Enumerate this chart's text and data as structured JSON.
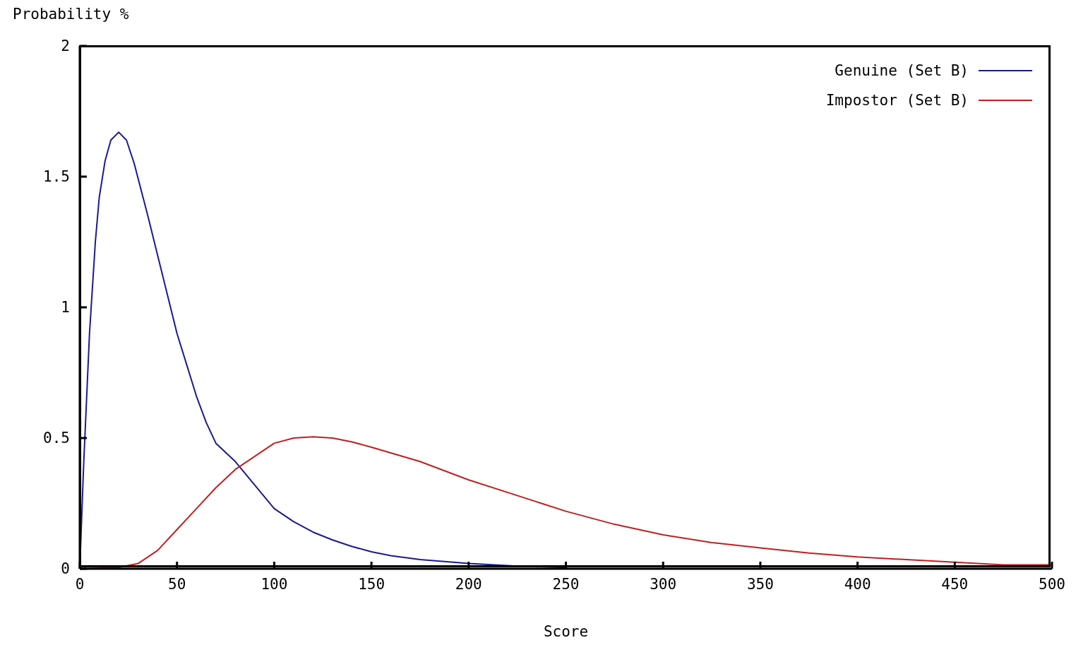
{
  "chart_data": {
    "type": "line",
    "ylabel": "Probability %",
    "xlabel": "Score",
    "xlim": [
      0,
      500
    ],
    "xticks": [
      0,
      50,
      100,
      150,
      200,
      250,
      300,
      350,
      400,
      450,
      500
    ],
    "ylim": [
      0,
      2
    ],
    "yticks": [
      0,
      0.5,
      1,
      1.5,
      2
    ],
    "grid": false,
    "legend": "top right",
    "marker": "none",
    "line_style": "solid",
    "series": [
      {
        "name": "Genuine (Set B)",
        "color": "#1a1a8c",
        "x": [
          0,
          2,
          5,
          8,
          10,
          13,
          16,
          20,
          24,
          28,
          35,
          40,
          45,
          50,
          55,
          60,
          65,
          70,
          80,
          90,
          100,
          110,
          120,
          130,
          140,
          150,
          160,
          175,
          200,
          225,
          250
        ],
        "values": [
          0,
          0.4,
          0.9,
          1.25,
          1.42,
          1.56,
          1.64,
          1.67,
          1.64,
          1.55,
          1.35,
          1.2,
          1.05,
          0.9,
          0.78,
          0.66,
          0.56,
          0.48,
          0.41,
          0.32,
          0.23,
          0.18,
          0.14,
          0.11,
          0.085,
          0.065,
          0.05,
          0.035,
          0.02,
          0.01,
          0.005
        ]
      },
      {
        "name": "Impostor (Set B)",
        "color": "#c02020",
        "x": [
          0,
          20,
          30,
          40,
          50,
          60,
          70,
          80,
          90,
          100,
          110,
          120,
          130,
          140,
          150,
          175,
          200,
          225,
          250,
          275,
          300,
          325,
          350,
          375,
          400,
          425,
          450,
          475,
          500
        ],
        "values": [
          0,
          0.005,
          0.02,
          0.07,
          0.15,
          0.23,
          0.31,
          0.38,
          0.43,
          0.48,
          0.5,
          0.505,
          0.5,
          0.485,
          0.465,
          0.41,
          0.34,
          0.28,
          0.22,
          0.17,
          0.13,
          0.1,
          0.08,
          0.06,
          0.045,
          0.035,
          0.025,
          0.015,
          0.015
        ]
      }
    ]
  }
}
